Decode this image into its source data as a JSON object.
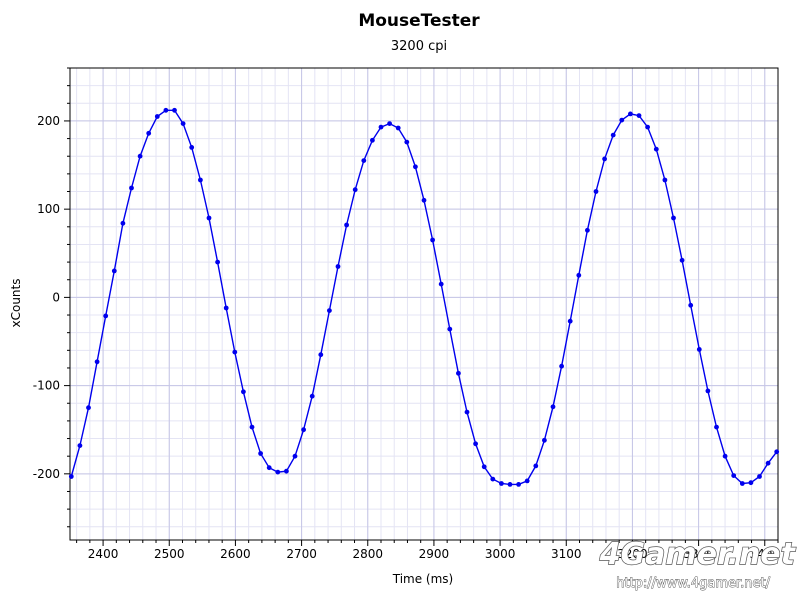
{
  "chart_data": {
    "type": "line",
    "title": "MouseTester",
    "subtitle": "3200 cpi",
    "xlabel": "Time (ms)",
    "ylabel": "xCounts",
    "xlim": [
      2350,
      3420
    ],
    "ylim": [
      -275,
      260
    ],
    "x_ticks": [
      2400,
      2500,
      2600,
      2700,
      2800,
      2900,
      3000,
      3100,
      3200,
      3300,
      3400
    ],
    "y_ticks": [
      -200,
      -100,
      0,
      100,
      200
    ],
    "grid": true,
    "series_color": "#0000ee",
    "series": [
      {
        "points": [
          [
            2352,
            -203
          ],
          [
            2365,
            -168
          ],
          [
            2378,
            -125
          ],
          [
            2391,
            -73
          ],
          [
            2404,
            -21
          ],
          [
            2417,
            30
          ],
          [
            2430,
            84
          ],
          [
            2443,
            124
          ],
          [
            2456,
            160
          ],
          [
            2469,
            186
          ],
          [
            2482,
            205
          ],
          [
            2495,
            212
          ],
          [
            2508,
            212
          ],
          [
            2521,
            197
          ],
          [
            2534,
            170
          ],
          [
            2547,
            133
          ],
          [
            2560,
            90
          ],
          [
            2573,
            40
          ],
          [
            2586,
            -12
          ],
          [
            2599,
            -62
          ],
          [
            2612,
            -107
          ],
          [
            2625,
            -147
          ],
          [
            2638,
            -177
          ],
          [
            2651,
            -193
          ],
          [
            2664,
            -198
          ],
          [
            2677,
            -197
          ],
          [
            2690,
            -180
          ],
          [
            2703,
            -150
          ],
          [
            2716,
            -112
          ],
          [
            2729,
            -65
          ],
          [
            2742,
            -15
          ],
          [
            2755,
            35
          ],
          [
            2768,
            82
          ],
          [
            2781,
            122
          ],
          [
            2794,
            155
          ],
          [
            2807,
            178
          ],
          [
            2820,
            193
          ],
          [
            2833,
            197
          ],
          [
            2846,
            192
          ],
          [
            2859,
            176
          ],
          [
            2872,
            148
          ],
          [
            2885,
            110
          ],
          [
            2898,
            65
          ],
          [
            2911,
            15
          ],
          [
            2924,
            -36
          ],
          [
            2937,
            -86
          ],
          [
            2950,
            -130
          ],
          [
            2963,
            -166
          ],
          [
            2976,
            -192
          ],
          [
            2989,
            -206
          ],
          [
            3002,
            -211
          ],
          [
            3015,
            -212
          ],
          [
            3028,
            -212
          ],
          [
            3041,
            -208
          ],
          [
            3054,
            -191
          ],
          [
            3067,
            -162
          ],
          [
            3080,
            -124
          ],
          [
            3093,
            -78
          ],
          [
            3106,
            -27
          ],
          [
            3119,
            25
          ],
          [
            3132,
            76
          ],
          [
            3145,
            120
          ],
          [
            3158,
            157
          ],
          [
            3171,
            184
          ],
          [
            3184,
            201
          ],
          [
            3197,
            208
          ],
          [
            3210,
            206
          ],
          [
            3223,
            193
          ],
          [
            3236,
            168
          ],
          [
            3249,
            133
          ],
          [
            3262,
            90
          ],
          [
            3275,
            42
          ],
          [
            3288,
            -9
          ],
          [
            3301,
            -59
          ],
          [
            3314,
            -106
          ],
          [
            3327,
            -147
          ],
          [
            3340,
            -180
          ],
          [
            3353,
            -202
          ],
          [
            3366,
            -211
          ],
          [
            3379,
            -210
          ],
          [
            3392,
            -203
          ],
          [
            3405,
            -188
          ],
          [
            3418,
            -175
          ]
        ]
      }
    ]
  },
  "watermark": {
    "logo_text": "4Gamer.net",
    "url": "http://www.4gamer.net/"
  }
}
